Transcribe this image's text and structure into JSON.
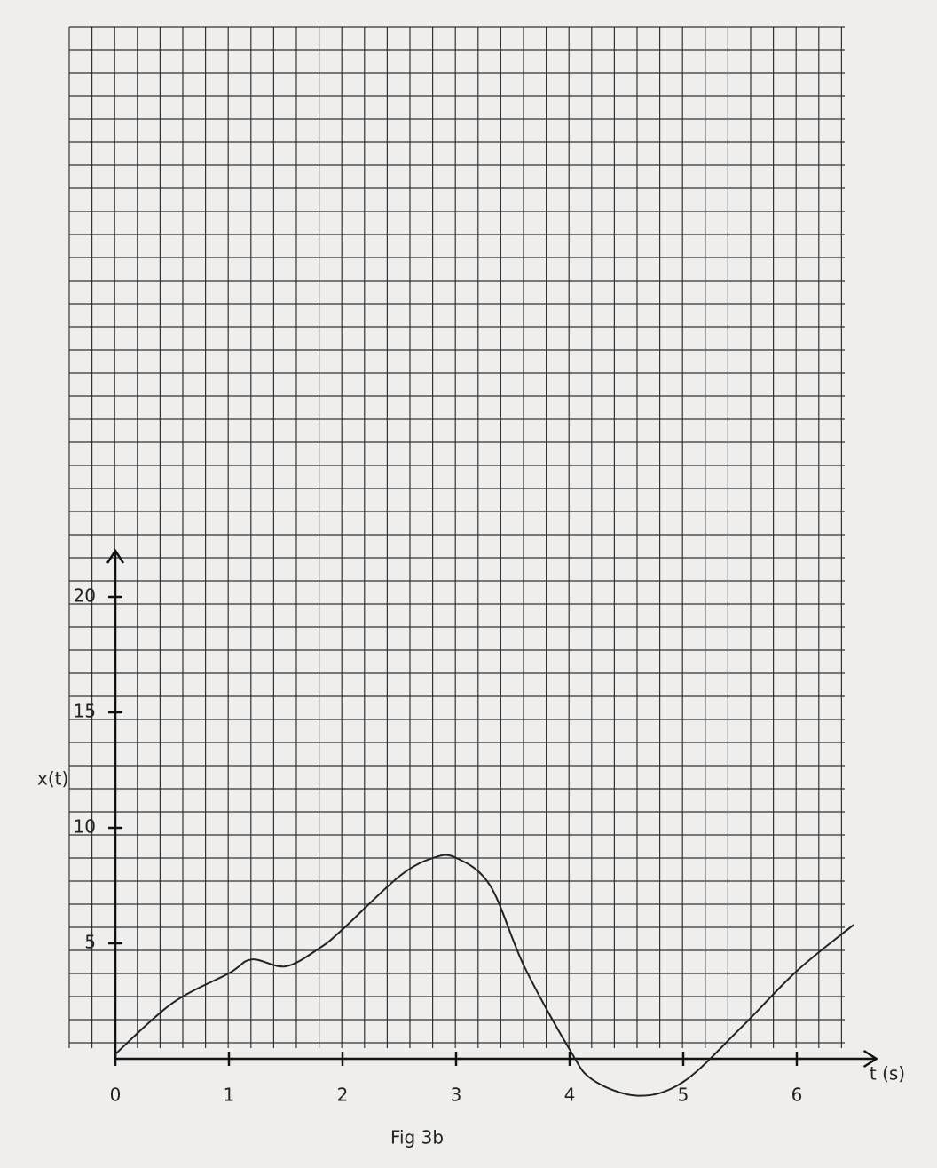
{
  "chart_data": {
    "type": "line",
    "caption": "Fig 3b",
    "y_label": "x(t)",
    "x_label": "t (s)",
    "x": [
      0,
      0.5,
      1,
      1.2,
      1.5,
      1.8,
      2,
      2.5,
      2.8,
      3,
      3.3,
      3.6,
      4,
      4.2,
      4.6,
      5,
      5.5,
      6,
      6.5
    ],
    "series": [
      {
        "color": "#222222",
        "values": [
          0.2,
          2.4,
          3.7,
          4.3,
          4.0,
          4.8,
          5.6,
          7.9,
          8.7,
          8.7,
          7.5,
          4.0,
          0.4,
          -0.9,
          -1.6,
          -1.0,
          1.3,
          3.8,
          5.8
        ]
      }
    ],
    "xlim": [
      0,
      6.7
    ],
    "ylim": [
      -2,
      22
    ],
    "xticks": [
      0,
      1,
      2,
      3,
      4,
      5,
      6
    ],
    "yticks": [
      5,
      10,
      15,
      20
    ],
    "grid": true
  }
}
